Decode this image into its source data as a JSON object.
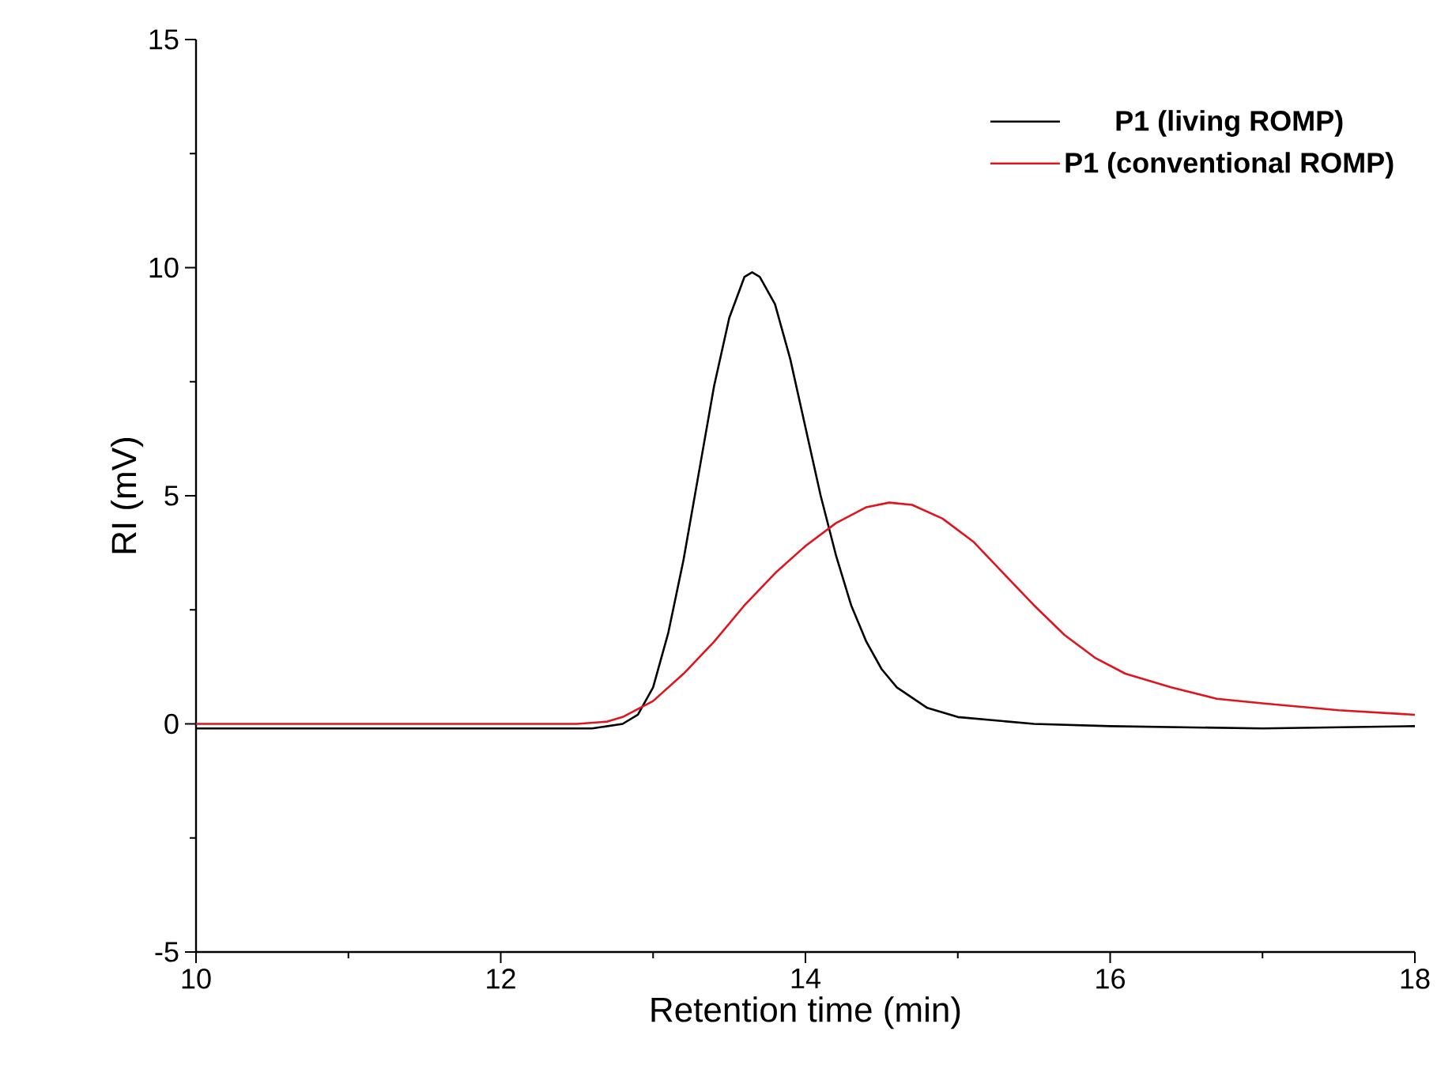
{
  "chart_data": {
    "type": "line",
    "xlabel": "Retention time (min)",
    "ylabel": "RI (mV)",
    "xlim": [
      10,
      18
    ],
    "ylim": [
      -5,
      15
    ],
    "xticks": [
      10,
      12,
      14,
      16,
      18
    ],
    "yticks": [
      -5,
      0,
      5,
      10,
      15
    ],
    "legend": "top right",
    "line_style": "solid",
    "series": [
      {
        "name": "P1 (living ROMP)",
        "color": "#000000",
        "x": [
          10,
          11,
          12,
          12.6,
          12.8,
          12.9,
          13.0,
          13.1,
          13.2,
          13.3,
          13.4,
          13.5,
          13.6,
          13.65,
          13.7,
          13.8,
          13.9,
          14.0,
          14.1,
          14.2,
          14.3,
          14.4,
          14.5,
          14.6,
          14.8,
          15.0,
          15.5,
          16,
          17,
          18
        ],
        "values": [
          -0.1,
          -0.1,
          -0.1,
          -0.1,
          0.0,
          0.2,
          0.8,
          2.0,
          3.6,
          5.5,
          7.4,
          8.9,
          9.8,
          9.9,
          9.8,
          9.2,
          8.0,
          6.5,
          5.0,
          3.7,
          2.6,
          1.8,
          1.2,
          0.8,
          0.35,
          0.15,
          0.0,
          -0.05,
          -0.1,
          -0.05
        ]
      },
      {
        "name": "P1 (conventional ROMP)",
        "color": "#e0141e",
        "x": [
          10,
          11,
          12,
          12.5,
          12.7,
          12.8,
          13.0,
          13.2,
          13.4,
          13.6,
          13.8,
          14.0,
          14.2,
          14.4,
          14.55,
          14.7,
          14.9,
          15.1,
          15.3,
          15.5,
          15.7,
          15.9,
          16.1,
          16.4,
          16.7,
          17.0,
          17.5,
          18
        ],
        "values": [
          0.0,
          0.0,
          0.0,
          0.0,
          0.05,
          0.15,
          0.5,
          1.1,
          1.8,
          2.6,
          3.3,
          3.9,
          4.4,
          4.75,
          4.85,
          4.8,
          4.5,
          4.0,
          3.3,
          2.6,
          1.95,
          1.45,
          1.1,
          0.8,
          0.55,
          0.45,
          0.3,
          0.2
        ]
      }
    ]
  }
}
